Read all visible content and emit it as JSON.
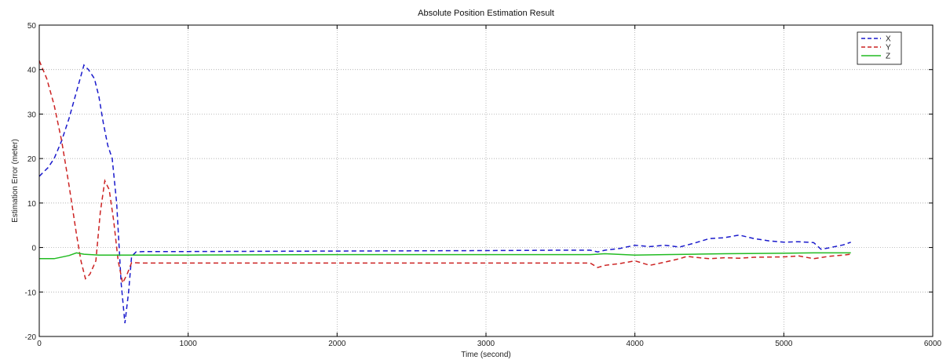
{
  "chart_data": {
    "type": "line",
    "title": "Absolute Position Estimation Result",
    "xlabel": "Time (second)",
    "ylabel": "Estimation Error (meter)",
    "xlim": [
      0,
      6000
    ],
    "ylim": [
      -20,
      50
    ],
    "xticks": [
      0,
      1000,
      2000,
      3000,
      4000,
      5000,
      6000
    ],
    "yticks": [
      -20,
      -10,
      0,
      10,
      20,
      30,
      40,
      50
    ],
    "grid": true,
    "legend_position": "top-right",
    "series": [
      {
        "name": "X",
        "color": "#1a1acc",
        "dash": "dashed",
        "points": [
          [
            0,
            16
          ],
          [
            60,
            18
          ],
          [
            100,
            20
          ],
          [
            150,
            24
          ],
          [
            200,
            29
          ],
          [
            250,
            35
          ],
          [
            300,
            41
          ],
          [
            330,
            40
          ],
          [
            370,
            38
          ],
          [
            400,
            34
          ],
          [
            430,
            28
          ],
          [
            460,
            23
          ],
          [
            490,
            20
          ],
          [
            520,
            10
          ],
          [
            550,
            -8
          ],
          [
            575,
            -17
          ],
          [
            600,
            -10
          ],
          [
            620,
            -2
          ],
          [
            650,
            -1
          ],
          [
            700,
            -0.9
          ],
          [
            1000,
            -0.9
          ],
          [
            2000,
            -0.8
          ],
          [
            3000,
            -0.7
          ],
          [
            3500,
            -0.6
          ],
          [
            3700,
            -0.6
          ],
          [
            3750,
            -1
          ],
          [
            3800,
            -0.6
          ],
          [
            3900,
            -0.2
          ],
          [
            4000,
            0.5
          ],
          [
            4100,
            0.2
          ],
          [
            4200,
            0.5
          ],
          [
            4300,
            0.1
          ],
          [
            4400,
            1.0
          ],
          [
            4500,
            2.0
          ],
          [
            4600,
            2.2
          ],
          [
            4700,
            2.8
          ],
          [
            4800,
            2.0
          ],
          [
            4900,
            1.5
          ],
          [
            5000,
            1.2
          ],
          [
            5100,
            1.3
          ],
          [
            5200,
            1.1
          ],
          [
            5250,
            -0.4
          ],
          [
            5300,
            -0.1
          ],
          [
            5400,
            0.6
          ],
          [
            5450,
            1.2
          ]
        ]
      },
      {
        "name": "Y",
        "color": "#cc2222",
        "dash": "dashed",
        "points": [
          [
            0,
            42
          ],
          [
            50,
            38
          ],
          [
            100,
            32
          ],
          [
            150,
            24
          ],
          [
            200,
            14
          ],
          [
            250,
            3
          ],
          [
            280,
            -3
          ],
          [
            310,
            -7
          ],
          [
            340,
            -6
          ],
          [
            380,
            -3
          ],
          [
            410,
            8
          ],
          [
            440,
            15
          ],
          [
            470,
            13
          ],
          [
            500,
            6
          ],
          [
            530,
            -3
          ],
          [
            560,
            -8
          ],
          [
            590,
            -6
          ],
          [
            620,
            -3.4
          ],
          [
            700,
            -3.5
          ],
          [
            1000,
            -3.5
          ],
          [
            2000,
            -3.5
          ],
          [
            3000,
            -3.5
          ],
          [
            3600,
            -3.5
          ],
          [
            3700,
            -3.5
          ],
          [
            3750,
            -4.5
          ],
          [
            3800,
            -4
          ],
          [
            3900,
            -3.6
          ],
          [
            4000,
            -3
          ],
          [
            4050,
            -3.5
          ],
          [
            4100,
            -4
          ],
          [
            4200,
            -3.3
          ],
          [
            4300,
            -2.5
          ],
          [
            4350,
            -2
          ],
          [
            4400,
            -2.2
          ],
          [
            4500,
            -2.5
          ],
          [
            4600,
            -2.3
          ],
          [
            4700,
            -2.4
          ],
          [
            4800,
            -2.2
          ],
          [
            5000,
            -2.1
          ],
          [
            5100,
            -1.9
          ],
          [
            5200,
            -2.5
          ],
          [
            5300,
            -2
          ],
          [
            5400,
            -1.7
          ],
          [
            5450,
            -1.5
          ]
        ]
      },
      {
        "name": "Z",
        "color": "#22bb22",
        "dash": "solid",
        "points": [
          [
            0,
            -2.5
          ],
          [
            100,
            -2.5
          ],
          [
            200,
            -1.8
          ],
          [
            250,
            -1.2
          ],
          [
            300,
            -1.5
          ],
          [
            400,
            -1.7
          ],
          [
            600,
            -1.7
          ],
          [
            1000,
            -1.7
          ],
          [
            2000,
            -1.6
          ],
          [
            3000,
            -1.6
          ],
          [
            3700,
            -1.6
          ],
          [
            3800,
            -1.4
          ],
          [
            4000,
            -1.7
          ],
          [
            4200,
            -1.6
          ],
          [
            4400,
            -1.5
          ],
          [
            4600,
            -1.4
          ],
          [
            5000,
            -1.3
          ],
          [
            5200,
            -1.2
          ],
          [
            5450,
            -1.2
          ]
        ]
      }
    ]
  }
}
